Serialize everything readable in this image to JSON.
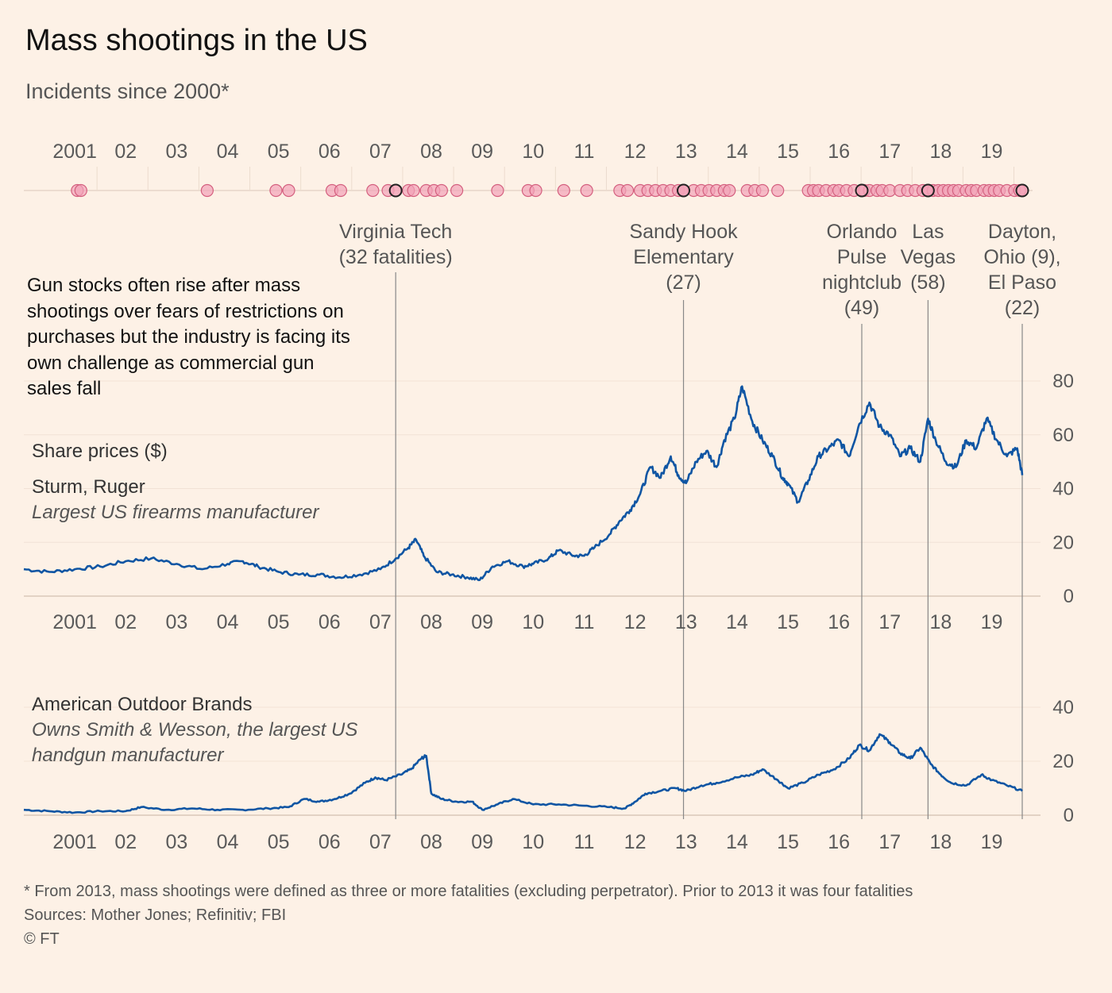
{
  "title": "Mass shootings in the US",
  "subtitle": "Incidents since 2000*",
  "note": "Gun stocks often rise after mass shootings over fears of restrictions on purchases but the industry is facing its own challenge as commercial gun sales fall",
  "footer": {
    "line1": "* From 2013, mass shootings were defined as three or more fatalities (excluding perpetrator). Prior to 2013 it was four fatalities",
    "line2": "Sources: Mother Jones; Refinitiv; FBI",
    "line3": "© FT"
  },
  "colors": {
    "background": "#fdf1e6",
    "line": "#0f55a3",
    "dot_fill": "#f2a3b8",
    "dot_stroke": "#d4607f",
    "highlight": "#222222",
    "guide": "#888888"
  },
  "chart_data": [
    {
      "type": "scatter",
      "name": "mass-shootings-timeline",
      "x_ticks": [
        "2001",
        "02",
        "03",
        "04",
        "05",
        "06",
        "07",
        "08",
        "09",
        "10",
        "11",
        "12",
        "13",
        "14",
        "15",
        "16",
        "17",
        "18",
        "19"
      ],
      "incidents": [
        2001.05,
        2001.12,
        2003.6,
        2004.95,
        2005.2,
        2006.05,
        2006.22,
        2006.85,
        2007.15,
        2007.55,
        2007.65,
        2007.9,
        2008.05,
        2008.2,
        2008.5,
        2009.3,
        2009.9,
        2010.05,
        2010.6,
        2011.05,
        2011.7,
        2011.85,
        2012.1,
        2012.25,
        2012.4,
        2012.55,
        2012.7,
        2012.85,
        2012.95,
        2013.15,
        2013.3,
        2013.45,
        2013.6,
        2013.75,
        2013.85,
        2014.2,
        2014.35,
        2014.5,
        2014.8,
        2015.4,
        2015.5,
        2015.6,
        2015.75,
        2015.9,
        2016.0,
        2016.15,
        2016.3,
        2016.5,
        2016.6,
        2016.75,
        2016.85,
        2017.0,
        2017.2,
        2017.35,
        2017.5,
        2017.65,
        2017.75,
        2017.85,
        2017.95,
        2018.05,
        2018.15,
        2018.25,
        2018.35,
        2018.5,
        2018.6,
        2018.7,
        2018.85,
        2018.95,
        2019.05,
        2019.15,
        2019.3,
        2019.45,
        2019.55
      ],
      "highlighted": [
        2007.3,
        2012.95,
        2016.45,
        2017.75,
        2019.6
      ],
      "annotations": [
        {
          "x": 2007.3,
          "lines": [
            "Virginia Tech",
            "(32 fatalities)"
          ]
        },
        {
          "x": 2012.95,
          "lines": [
            "Sandy Hook",
            "Elementary",
            "(27)"
          ]
        },
        {
          "x": 2016.45,
          "lines": [
            "Orlando",
            "Pulse",
            "nightclub",
            "(49)"
          ]
        },
        {
          "x": 2017.75,
          "lines": [
            "Las",
            "Vegas",
            "(58)"
          ]
        },
        {
          "x": 2019.6,
          "lines": [
            "Dayton,",
            "Ohio (9),",
            "El Paso",
            "(22)"
          ]
        }
      ]
    },
    {
      "type": "line",
      "name": "sturm-ruger",
      "title": "Share prices ($)",
      "series_name": "Sturm, Ruger",
      "series_desc": "Largest US firearms manufacturer",
      "ylim": [
        0,
        80
      ],
      "y_ticks": [
        "0",
        "20",
        "40",
        "60",
        "80"
      ],
      "x_ticks": [
        "2001",
        "02",
        "03",
        "04",
        "05",
        "06",
        "07",
        "08",
        "09",
        "10",
        "11",
        "12",
        "13",
        "14",
        "15",
        "16",
        "17",
        "18",
        "19"
      ],
      "x": [
        2000.0,
        2000.5,
        2001.0,
        2001.5,
        2002.0,
        2002.5,
        2003.0,
        2003.5,
        2004.0,
        2004.3,
        2004.6,
        2005.0,
        2005.4,
        2005.8,
        2006.2,
        2006.6,
        2007.0,
        2007.3,
        2007.55,
        2007.7,
        2007.85,
        2008.1,
        2008.4,
        2008.7,
        2008.95,
        2009.2,
        2009.5,
        2009.8,
        2010.0,
        2010.3,
        2010.5,
        2010.8,
        2011.0,
        2011.2,
        2011.5,
        2011.7,
        2011.9,
        2012.1,
        2012.3,
        2012.5,
        2012.7,
        2012.85,
        2013.0,
        2013.2,
        2013.4,
        2013.6,
        2013.75,
        2013.95,
        2014.1,
        2014.3,
        2014.5,
        2014.7,
        2014.9,
        2015.0,
        2015.2,
        2015.4,
        2015.6,
        2015.8,
        2016.0,
        2016.2,
        2016.4,
        2016.6,
        2016.8,
        2017.0,
        2017.2,
        2017.4,
        2017.6,
        2017.75,
        2017.9,
        2018.1,
        2018.3,
        2018.5,
        2018.7,
        2018.9,
        2019.1,
        2019.3,
        2019.5,
        2019.6
      ],
      "y": [
        10,
        9,
        10,
        11,
        13,
        14,
        12,
        10,
        12,
        13,
        11,
        9,
        8,
        8,
        7,
        8,
        10,
        14,
        18,
        21,
        15,
        9,
        8,
        7,
        6,
        11,
        13,
        11,
        12,
        14,
        17,
        15,
        15,
        18,
        23,
        28,
        32,
        38,
        48,
        44,
        52,
        45,
        42,
        50,
        54,
        48,
        58,
        66,
        78,
        65,
        58,
        52,
        44,
        42,
        35,
        43,
        52,
        55,
        58,
        52,
        64,
        72,
        63,
        60,
        52,
        55,
        50,
        66,
        58,
        50,
        48,
        58,
        55,
        66,
        58,
        52,
        55,
        45
      ]
    },
    {
      "type": "line",
      "name": "american-outdoor-brands",
      "series_name": "American Outdoor Brands",
      "series_desc": "Owns Smith & Wesson, the largest US handgun manufacturer",
      "ylim": [
        0,
        40
      ],
      "y_ticks": [
        "0",
        "20",
        "40"
      ],
      "x_ticks": [
        "2001",
        "02",
        "03",
        "04",
        "05",
        "06",
        "07",
        "08",
        "09",
        "10",
        "11",
        "12",
        "13",
        "14",
        "15",
        "16",
        "17",
        "18",
        "19"
      ],
      "x": [
        2000.0,
        2000.5,
        2001.0,
        2001.5,
        2002.0,
        2002.3,
        2002.8,
        2003.3,
        2003.8,
        2004.3,
        2004.8,
        2005.2,
        2005.5,
        2005.8,
        2006.1,
        2006.4,
        2006.7,
        2006.9,
        2007.1,
        2007.4,
        2007.6,
        2007.8,
        2007.9,
        2008.0,
        2008.2,
        2008.5,
        2008.8,
        2009.0,
        2009.3,
        2009.6,
        2010.0,
        2010.5,
        2011.0,
        2011.5,
        2011.8,
        2012.0,
        2012.2,
        2012.5,
        2012.8,
        2013.0,
        2013.3,
        2013.6,
        2014.0,
        2014.3,
        2014.5,
        2014.8,
        2015.0,
        2015.3,
        2015.6,
        2015.9,
        2016.2,
        2016.4,
        2016.6,
        2016.8,
        2017.0,
        2017.2,
        2017.4,
        2017.6,
        2017.8,
        2018.0,
        2018.2,
        2018.5,
        2018.8,
        2019.0,
        2019.3,
        2019.6
      ],
      "y": [
        2,
        1.5,
        1,
        1.5,
        1.5,
        3,
        2,
        2.5,
        2,
        2,
        2.5,
        3,
        6,
        5,
        6,
        8,
        12,
        14,
        13,
        15,
        17,
        21,
        22,
        8,
        6,
        5,
        5,
        2,
        4,
        6,
        4,
        4,
        3.5,
        3,
        2.5,
        5,
        8,
        9,
        10,
        9,
        11,
        12,
        14,
        15,
        17,
        13,
        10,
        12,
        15,
        17,
        21,
        26,
        24,
        30,
        27,
        23,
        21,
        25,
        19,
        15,
        12,
        11,
        15,
        13,
        11,
        9
      ]
    }
  ]
}
